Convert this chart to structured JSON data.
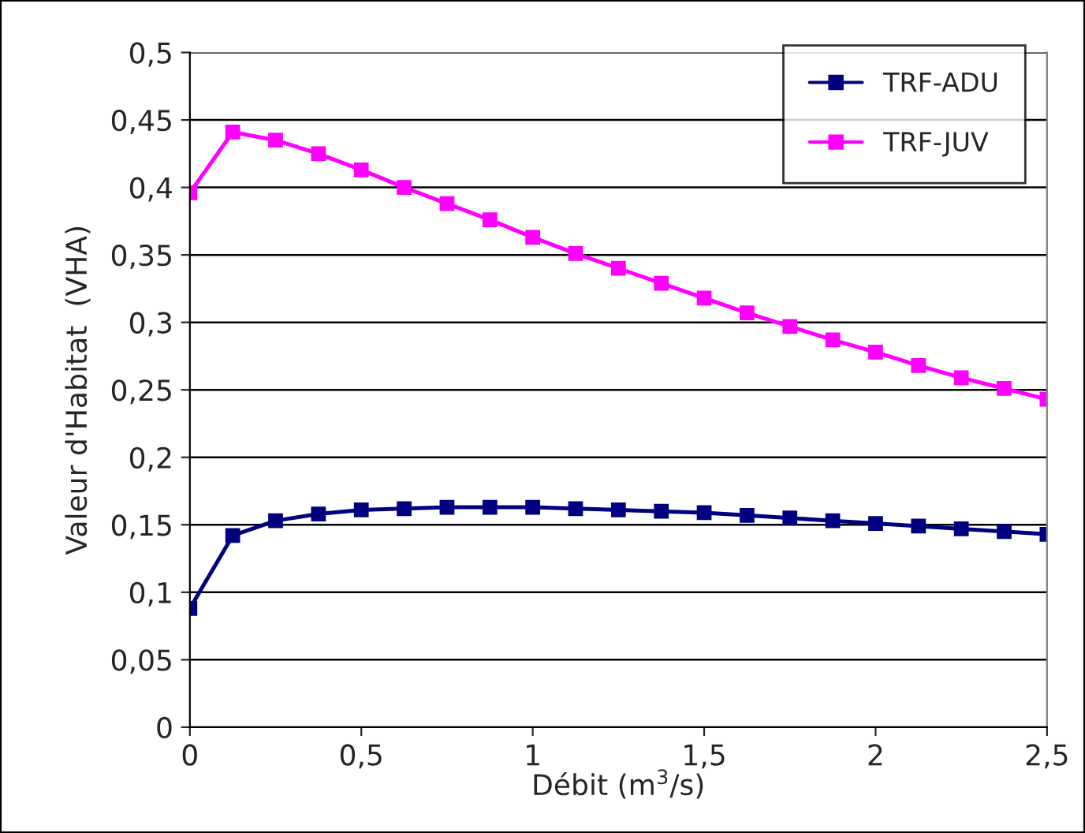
{
  "chart_data": {
    "type": "line",
    "xlabel": "Débit (m$^{3}$/s)",
    "ylabel": "Valeur d'Habitat  (VHA)",
    "x": [
      0,
      0.125,
      0.25,
      0.375,
      0.5,
      0.625,
      0.75,
      0.875,
      1,
      1.125,
      1.25,
      1.375,
      1.5,
      1.625,
      1.75,
      1.875,
      2,
      2.125,
      2.25,
      2.375,
      2.5
    ],
    "series": [
      {
        "name": "TRF-ADU",
        "color": "#000080",
        "values": [
          0.088,
          0.142,
          0.153,
          0.158,
          0.161,
          0.162,
          0.163,
          0.163,
          0.163,
          0.162,
          0.161,
          0.16,
          0.159,
          0.157,
          0.155,
          0.153,
          0.151,
          0.149,
          0.147,
          0.145,
          0.143
        ]
      },
      {
        "name": "TRF-JUV",
        "color": "#ff00ff",
        "values": [
          0.396,
          0.441,
          0.435,
          0.425,
          0.413,
          0.4,
          0.388,
          0.376,
          0.363,
          0.351,
          0.34,
          0.329,
          0.318,
          0.307,
          0.297,
          0.287,
          0.278,
          0.268,
          0.259,
          0.251,
          0.243
        ]
      }
    ],
    "xlim": [
      0,
      2.5
    ],
    "xticks": [
      0,
      {
        "value": 0.5,
        "label": "0,5"
      },
      1,
      {
        "value": 1.5,
        "label": "1,5"
      },
      2,
      {
        "value": 2.5,
        "label": "2,5"
      }
    ],
    "ylim": [
      0,
      0.5
    ],
    "yticks": [
      0,
      {
        "value": 0.05,
        "label": "0,05"
      },
      {
        "value": 0.1,
        "label": "0,1"
      },
      {
        "value": 0.15,
        "label": "0,15"
      },
      {
        "value": 0.2,
        "label": "0,2"
      },
      {
        "value": 0.25,
        "label": "0,25"
      },
      {
        "value": 0.3,
        "label": "0,3"
      },
      {
        "value": 0.35,
        "label": "0,35"
      },
      {
        "value": 0.4,
        "label": "0,4"
      },
      {
        "value": 0.45,
        "label": "0,45"
      },
      {
        "value": 0.5,
        "label": "0,5"
      }
    ],
    "grid": "y",
    "legend": "top right",
    "marker": "square",
    "line_style": "solid"
  }
}
